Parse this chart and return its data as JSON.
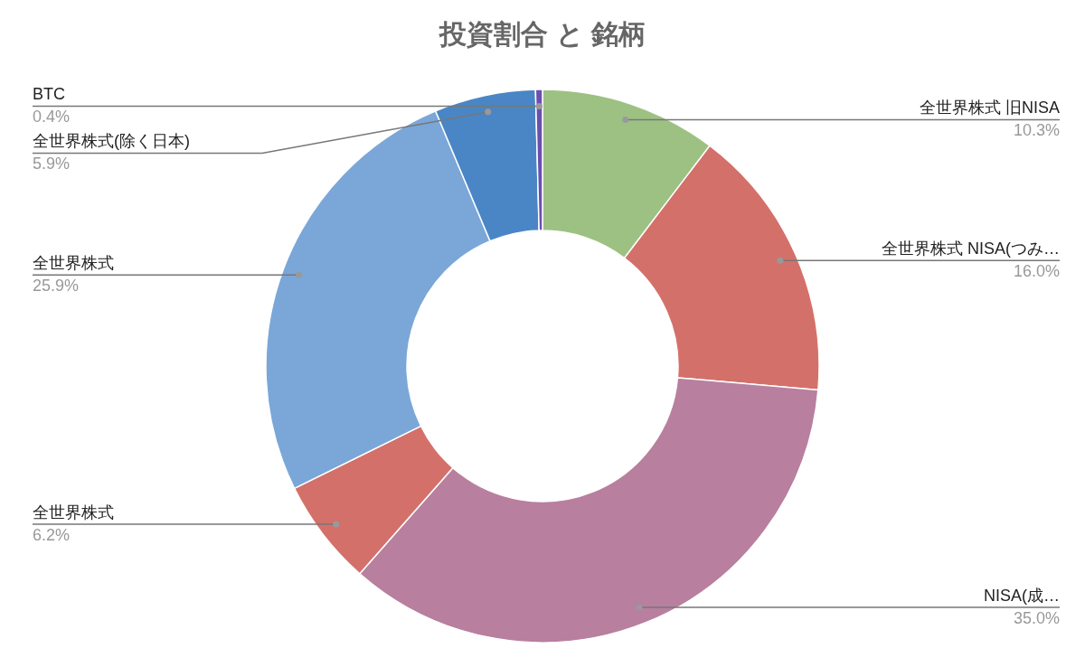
{
  "chart_data": {
    "type": "donut",
    "title": "投資割合 と 銘柄",
    "categories": [
      "全世界株式 旧NISA",
      "全世界株式 NISA(つみ…",
      "NISA(成…",
      "全世界株式",
      "全世界株式",
      "全世界株式(除く日本)",
      "BTC"
    ],
    "values": [
      10.3,
      16.0,
      35.0,
      6.2,
      25.9,
      5.9,
      0.4
    ],
    "value_labels": [
      "10.3%",
      "16.0%",
      "35.0%",
      "6.2%",
      "25.9%",
      "5.9%",
      "0.4%"
    ],
    "colors": [
      "#9dc183",
      "#d4706a",
      "#b87f9f",
      "#d4706a",
      "#7aa7d8",
      "#4a86c5",
      "#6a4fb0"
    ],
    "legend": false
  }
}
